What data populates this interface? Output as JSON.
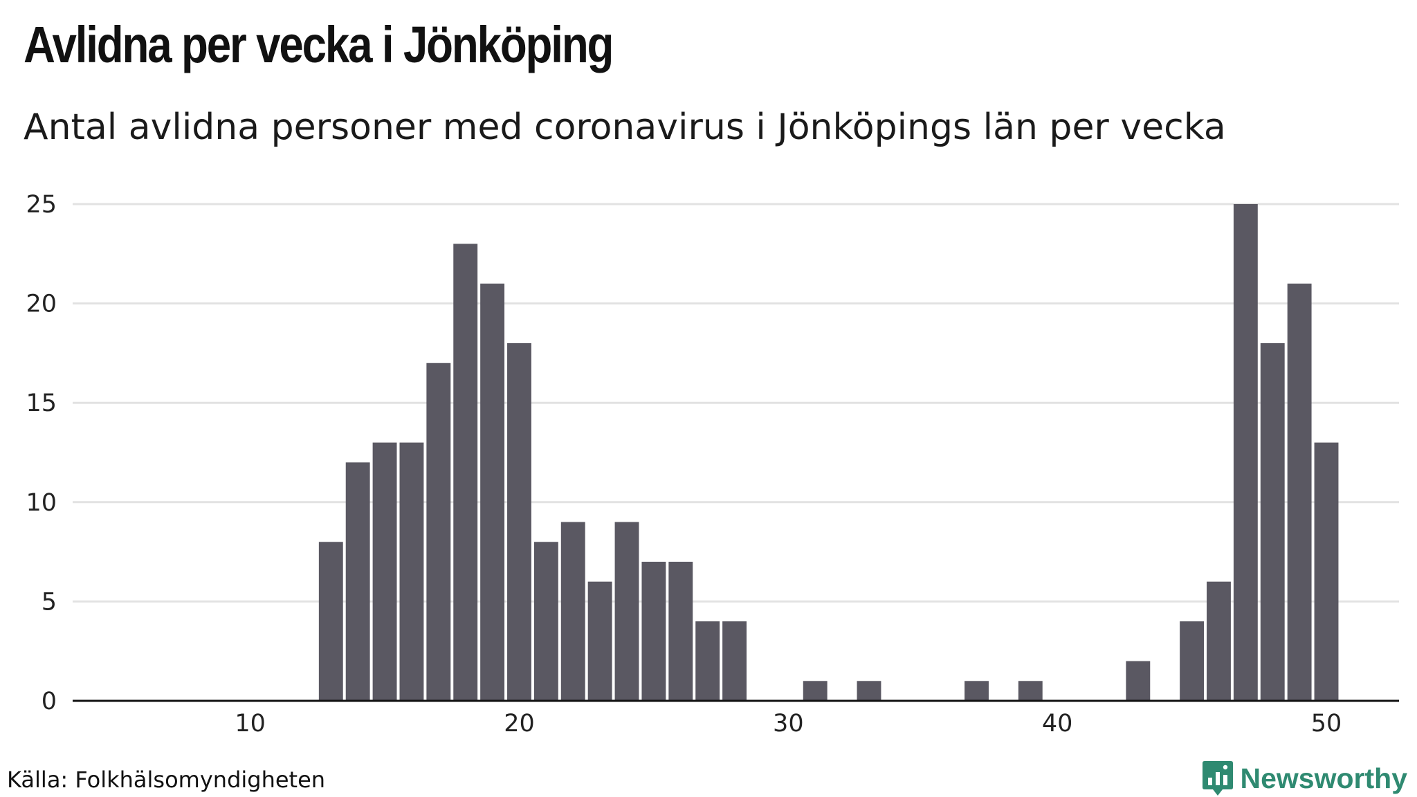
{
  "header": {
    "title": "Avlidna per vecka i Jönköping",
    "subtitle": "Antal avlidna personer med coronavirus i Jönköpings län per vecka"
  },
  "footer": {
    "source": "Källa: Folkhälsomyndigheten",
    "brand": "Newsworthy"
  },
  "colors": {
    "bar": "#5a5862",
    "grid": "#e2e2e2",
    "axis": "#111111",
    "brand": "#2f8a71"
  },
  "chart_data": {
    "type": "bar",
    "title": "Avlidna per vecka i Jönköping",
    "subtitle": "Antal avlidna personer med coronavirus i Jönköpings län per vecka",
    "xlabel": "",
    "ylabel": "",
    "x": [
      13,
      14,
      15,
      16,
      17,
      18,
      19,
      20,
      21,
      22,
      23,
      24,
      25,
      26,
      27,
      28,
      29,
      30,
      31,
      32,
      33,
      34,
      35,
      36,
      37,
      38,
      39,
      40,
      41,
      42,
      43,
      44,
      45,
      46,
      47,
      48,
      49,
      50
    ],
    "values": [
      8,
      12,
      13,
      13,
      17,
      23,
      21,
      18,
      8,
      9,
      6,
      9,
      7,
      7,
      4,
      4,
      0,
      0,
      1,
      0,
      1,
      0,
      0,
      0,
      1,
      0,
      1,
      0,
      0,
      0,
      2,
      0,
      4,
      6,
      25,
      18,
      21,
      13
    ],
    "xlim": [
      3.4,
      52.7
    ],
    "ylim": [
      0,
      25
    ],
    "xticks": [
      10,
      20,
      30,
      40,
      50
    ],
    "yticks": [
      0,
      5,
      10,
      15,
      20,
      25
    ],
    "grid": true,
    "legend": "none"
  }
}
